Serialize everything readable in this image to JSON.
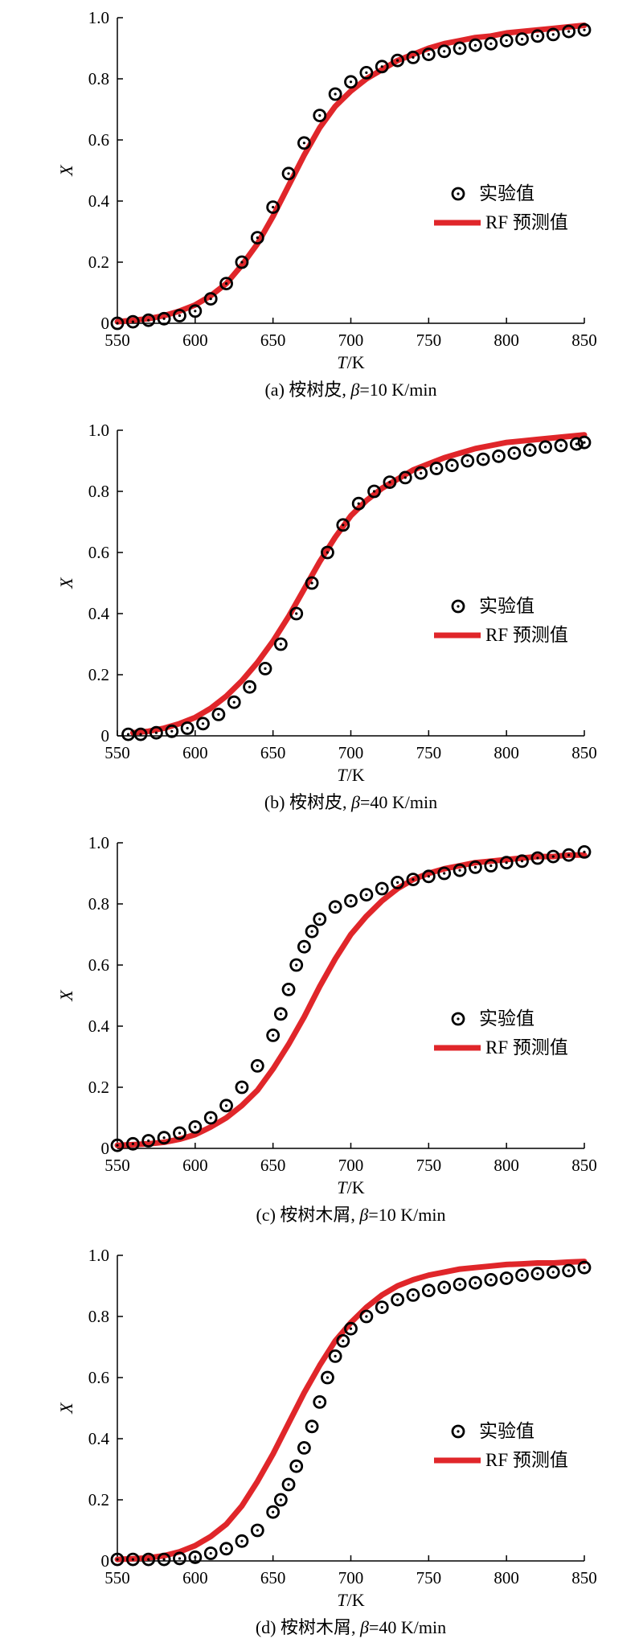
{
  "chart_data": [
    {
      "type": "line",
      "caption": "(a) 桉树皮, β=10 K/min",
      "caption_parts": {
        "prefix": "(a) 桉树皮, ",
        "beta": "β",
        "suffix": "=10 K/min"
      },
      "xlabel": "T/K",
      "xlabel_var": "T",
      "xlabel_unit": "/K",
      "ylabel": "X",
      "xlim": [
        550,
        850
      ],
      "ylim": [
        0,
        1.0
      ],
      "xticks": [
        "550",
        "600",
        "650",
        "700",
        "750",
        "800",
        "850"
      ],
      "yticks": [
        "0",
        "0.2",
        "0.4",
        "0.6",
        "0.8",
        "1.0"
      ],
      "grid": false,
      "legend_position": "right",
      "series": [
        {
          "name": "实验值",
          "style": "circle-markers",
          "color": "#000000",
          "x": [
            550,
            560,
            570,
            580,
            590,
            600,
            610,
            620,
            630,
            640,
            650,
            660,
            670,
            680,
            690,
            700,
            710,
            720,
            730,
            740,
            750,
            760,
            770,
            780,
            790,
            800,
            810,
            820,
            830,
            840,
            850
          ],
          "y": [
            0.0,
            0.005,
            0.01,
            0.015,
            0.025,
            0.04,
            0.08,
            0.13,
            0.2,
            0.28,
            0.38,
            0.49,
            0.59,
            0.68,
            0.75,
            0.79,
            0.82,
            0.84,
            0.86,
            0.87,
            0.88,
            0.89,
            0.9,
            0.91,
            0.915,
            0.925,
            0.93,
            0.94,
            0.945,
            0.955,
            0.96
          ]
        },
        {
          "name": "RF 预测值",
          "style": "thick-line",
          "color": "#e0262a",
          "x": [
            550,
            560,
            570,
            580,
            590,
            600,
            610,
            620,
            630,
            640,
            650,
            660,
            670,
            680,
            690,
            700,
            710,
            720,
            730,
            740,
            750,
            760,
            770,
            780,
            790,
            800,
            810,
            820,
            830,
            840,
            850
          ],
          "y": [
            0.005,
            0.01,
            0.015,
            0.025,
            0.04,
            0.06,
            0.09,
            0.13,
            0.19,
            0.26,
            0.35,
            0.45,
            0.55,
            0.64,
            0.71,
            0.76,
            0.8,
            0.83,
            0.86,
            0.88,
            0.9,
            0.915,
            0.925,
            0.935,
            0.94,
            0.95,
            0.955,
            0.96,
            0.965,
            0.97,
            0.975
          ]
        }
      ]
    },
    {
      "type": "line",
      "caption": "(b) 桉树皮, β=40 K/min",
      "caption_parts": {
        "prefix": "(b) 桉树皮, ",
        "beta": "β",
        "suffix": "=40 K/min"
      },
      "xlabel": "T/K",
      "xlabel_var": "T",
      "xlabel_unit": "/K",
      "ylabel": "X",
      "xlim": [
        550,
        850
      ],
      "ylim": [
        0,
        1.0
      ],
      "xticks": [
        "550",
        "600",
        "650",
        "700",
        "750",
        "800",
        "850"
      ],
      "yticks": [
        "0",
        "0.2",
        "0.4",
        "0.6",
        "0.8",
        "1.0"
      ],
      "grid": false,
      "legend_position": "right",
      "series": [
        {
          "name": "实验值",
          "style": "circle-markers",
          "color": "#000000",
          "x": [
            557,
            565,
            575,
            585,
            595,
            605,
            615,
            625,
            635,
            645,
            655,
            665,
            675,
            685,
            695,
            705,
            715,
            725,
            735,
            745,
            755,
            765,
            775,
            785,
            795,
            805,
            815,
            825,
            835,
            845,
            850
          ],
          "y": [
            0.005,
            0.005,
            0.01,
            0.015,
            0.025,
            0.04,
            0.07,
            0.11,
            0.16,
            0.22,
            0.3,
            0.4,
            0.5,
            0.6,
            0.69,
            0.76,
            0.8,
            0.83,
            0.845,
            0.86,
            0.875,
            0.885,
            0.9,
            0.905,
            0.915,
            0.925,
            0.935,
            0.945,
            0.95,
            0.955,
            0.96
          ]
        },
        {
          "name": "RF 预测值",
          "style": "thick-line",
          "color": "#e0262a",
          "x": [
            560,
            570,
            580,
            590,
            600,
            610,
            620,
            630,
            640,
            650,
            660,
            670,
            680,
            690,
            700,
            710,
            720,
            730,
            740,
            750,
            760,
            770,
            780,
            790,
            800,
            810,
            820,
            830,
            840,
            850
          ],
          "y": [
            0.01,
            0.015,
            0.025,
            0.04,
            0.06,
            0.09,
            0.13,
            0.18,
            0.24,
            0.31,
            0.39,
            0.48,
            0.57,
            0.65,
            0.72,
            0.77,
            0.81,
            0.84,
            0.87,
            0.89,
            0.91,
            0.925,
            0.94,
            0.95,
            0.96,
            0.965,
            0.97,
            0.975,
            0.98,
            0.985
          ]
        }
      ]
    },
    {
      "type": "line",
      "caption": "(c) 桉树木屑, β=10 K/min",
      "caption_parts": {
        "prefix": "(c) 桉树木屑, ",
        "beta": "β",
        "suffix": "=10 K/min"
      },
      "xlabel": "T/K",
      "xlabel_var": "T",
      "xlabel_unit": "/K",
      "ylabel": "X",
      "xlim": [
        550,
        850
      ],
      "ylim": [
        0,
        1.0
      ],
      "xticks": [
        "550",
        "600",
        "650",
        "700",
        "750",
        "800",
        "850"
      ],
      "yticks": [
        "0",
        "0.2",
        "0.4",
        "0.6",
        "0.8",
        "1.0"
      ],
      "grid": false,
      "legend_position": "right",
      "series": [
        {
          "name": "实验值",
          "style": "circle-markers",
          "color": "#000000",
          "x": [
            550,
            560,
            570,
            580,
            590,
            600,
            610,
            620,
            630,
            640,
            650,
            655,
            660,
            665,
            670,
            675,
            680,
            690,
            700,
            710,
            720,
            730,
            740,
            750,
            760,
            770,
            780,
            790,
            800,
            810,
            820,
            830,
            840,
            850
          ],
          "y": [
            0.01,
            0.015,
            0.025,
            0.035,
            0.05,
            0.07,
            0.1,
            0.14,
            0.2,
            0.27,
            0.37,
            0.44,
            0.52,
            0.6,
            0.66,
            0.71,
            0.75,
            0.79,
            0.81,
            0.83,
            0.85,
            0.87,
            0.88,
            0.89,
            0.9,
            0.91,
            0.92,
            0.925,
            0.935,
            0.94,
            0.95,
            0.955,
            0.96,
            0.97
          ]
        },
        {
          "name": "RF 预测值",
          "style": "thick-line",
          "color": "#e0262a",
          "x": [
            550,
            560,
            570,
            580,
            590,
            600,
            610,
            620,
            630,
            640,
            650,
            660,
            670,
            680,
            690,
            700,
            710,
            720,
            730,
            740,
            750,
            760,
            770,
            780,
            790,
            800,
            810,
            820,
            830,
            840,
            850
          ],
          "y": [
            0.01,
            0.012,
            0.015,
            0.02,
            0.03,
            0.045,
            0.07,
            0.1,
            0.14,
            0.19,
            0.26,
            0.34,
            0.43,
            0.53,
            0.62,
            0.7,
            0.76,
            0.81,
            0.85,
            0.88,
            0.9,
            0.915,
            0.925,
            0.935,
            0.94,
            0.945,
            0.95,
            0.955,
            0.955,
            0.96,
            0.96
          ]
        }
      ]
    },
    {
      "type": "line",
      "caption": "(d) 桉树木屑, β=40 K/min",
      "caption_parts": {
        "prefix": "(d) 桉树木屑, ",
        "beta": "β",
        "suffix": "=40 K/min"
      },
      "xlabel": "T/K",
      "xlabel_var": "T",
      "xlabel_unit": "/K",
      "ylabel": "X",
      "xlim": [
        550,
        850
      ],
      "ylim": [
        0,
        1.0
      ],
      "xticks": [
        "550",
        "600",
        "650",
        "700",
        "750",
        "800",
        "850"
      ],
      "yticks": [
        "0",
        "0.2",
        "0.4",
        "0.6",
        "0.8",
        "1.0"
      ],
      "grid": false,
      "legend_position": "right",
      "series": [
        {
          "name": "实验值",
          "style": "circle-markers",
          "color": "#000000",
          "x": [
            550,
            560,
            570,
            580,
            590,
            600,
            610,
            620,
            630,
            640,
            650,
            655,
            660,
            665,
            670,
            675,
            680,
            685,
            690,
            695,
            700,
            710,
            720,
            730,
            740,
            750,
            760,
            770,
            780,
            790,
            800,
            810,
            820,
            830,
            840,
            850
          ],
          "y": [
            0.005,
            0.005,
            0.005,
            0.005,
            0.008,
            0.012,
            0.025,
            0.04,
            0.065,
            0.1,
            0.16,
            0.2,
            0.25,
            0.31,
            0.37,
            0.44,
            0.52,
            0.6,
            0.67,
            0.72,
            0.76,
            0.8,
            0.83,
            0.855,
            0.87,
            0.885,
            0.895,
            0.905,
            0.91,
            0.92,
            0.925,
            0.935,
            0.94,
            0.945,
            0.95,
            0.96
          ]
        },
        {
          "name": "RF 预测值",
          "style": "thick-line",
          "color": "#e0262a",
          "x": [
            550,
            560,
            570,
            580,
            590,
            600,
            610,
            620,
            630,
            640,
            650,
            660,
            670,
            680,
            690,
            700,
            710,
            720,
            730,
            740,
            750,
            760,
            770,
            780,
            790,
            800,
            810,
            820,
            830,
            840,
            850
          ],
          "y": [
            0.005,
            0.007,
            0.01,
            0.017,
            0.03,
            0.05,
            0.08,
            0.12,
            0.18,
            0.26,
            0.35,
            0.45,
            0.55,
            0.64,
            0.72,
            0.78,
            0.83,
            0.87,
            0.9,
            0.92,
            0.935,
            0.945,
            0.955,
            0.96,
            0.965,
            0.97,
            0.972,
            0.975,
            0.975,
            0.978,
            0.98
          ]
        }
      ]
    }
  ]
}
